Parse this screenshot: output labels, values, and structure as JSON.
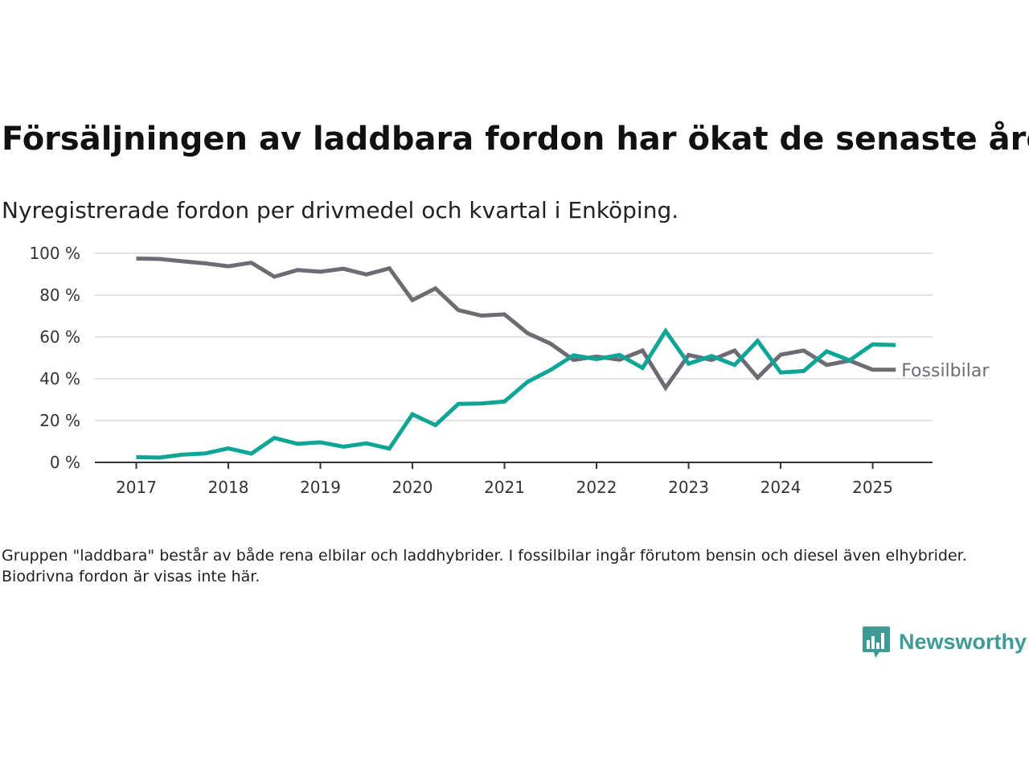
{
  "title": "Försäljningen av laddbara fordon har ökat de senaste åren",
  "subtitle": "Nyregistrerade fordon per drivmedel och kvartal i Enköping.",
  "note": "Gruppen \"laddbara\" består av både rena elbilar och laddhybrider. I fossilbilar ingår förutom bensin och diesel även elhybrider. Biodrivna fordon är visas inte här.",
  "brand": {
    "name": "Newsworthy",
    "color": "#3d9b93",
    "icon": "bar-chart-speech-bubble-icon"
  },
  "chart_data": {
    "type": "line",
    "x": [
      2017.0,
      2017.25,
      2017.5,
      2017.75,
      2018.0,
      2018.25,
      2018.5,
      2018.75,
      2019.0,
      2019.25,
      2019.5,
      2019.75,
      2020.0,
      2020.25,
      2020.5,
      2020.75,
      2021.0,
      2021.25,
      2021.5,
      2021.75,
      2022.0,
      2022.25,
      2022.5,
      2022.75,
      2023.0,
      2023.25,
      2023.5,
      2023.75,
      2024.0,
      2024.25,
      2024.5,
      2024.75,
      2025.0,
      2025.25
    ],
    "x_ticks": [
      "2017",
      "2018",
      "2019",
      "2020",
      "2021",
      "2022",
      "2023",
      "2024",
      "2025"
    ],
    "x_tick_values": [
      2017,
      2018,
      2019,
      2020,
      2021,
      2022,
      2023,
      2024,
      2025
    ],
    "y_ticks": [
      "0 %",
      "20 %",
      "40 %",
      "60 %",
      "80 %",
      "100 %"
    ],
    "y_tick_values": [
      0,
      20,
      40,
      60,
      80,
      100
    ],
    "ylim": [
      0,
      100
    ],
    "xlim": [
      2016.55,
      2025.65
    ],
    "grid": true,
    "series": [
      {
        "name": "Fossilbilar",
        "color": "#6d6b73",
        "values": [
          97.5,
          97.3,
          96.2,
          95.2,
          93.8,
          95.5,
          88.8,
          92.0,
          91.2,
          92.6,
          89.9,
          92.8,
          77.6,
          83.2,
          72.8,
          70.2,
          70.8,
          61.8,
          56.8,
          49.0,
          50.6,
          49.1,
          53.5,
          35.7,
          51.4,
          49.0,
          53.5,
          40.5,
          51.5,
          53.5,
          46.6,
          48.7,
          44.3,
          44.3
        ]
      },
      {
        "name": "",
        "color": "#0fa596",
        "values": [
          2.5,
          2.3,
          3.7,
          4.3,
          6.7,
          4.2,
          11.7,
          8.9,
          9.6,
          7.5,
          9.1,
          6.6,
          23.0,
          17.8,
          28.0,
          28.2,
          29.1,
          38.5,
          44.2,
          51.2,
          49.4,
          51.4,
          45.2,
          62.8,
          47.2,
          50.9,
          46.6,
          58.1,
          43.0,
          43.7,
          53.1,
          48.8,
          56.5,
          56.1
        ]
      }
    ]
  }
}
